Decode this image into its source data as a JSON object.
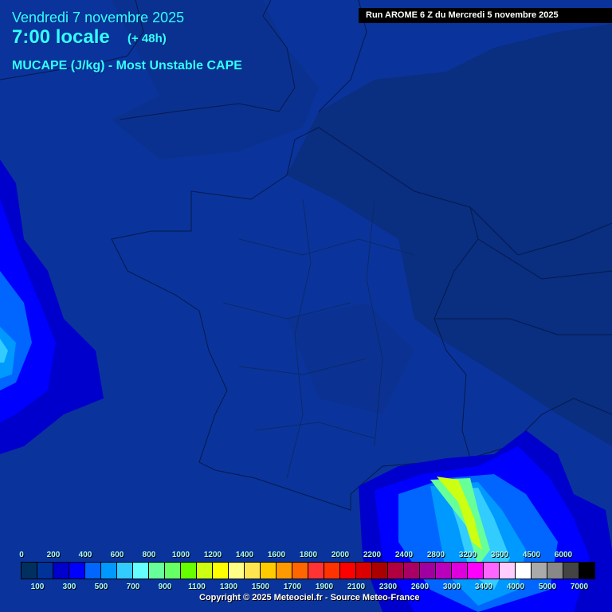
{
  "header": {
    "date": "Vendredi 7 novembre 2025",
    "hour": "7:00 locale",
    "lead": "(+ 48h)",
    "parameter": "MUCAPE (J/kg) - Most Unstable CAPE",
    "run": "Run AROME 6 Z du Mercredi 5 novembre 2025"
  },
  "legend": {
    "top_labels": [
      "0",
      "200",
      "400",
      "600",
      "800",
      "1000",
      "1200",
      "1400",
      "1600",
      "1800",
      "2000",
      "2200",
      "2400",
      "2800",
      "3200",
      "3600",
      "4500",
      "6000"
    ],
    "bottom_labels": [
      "100",
      "300",
      "500",
      "700",
      "900",
      "1100",
      "1300",
      "1500",
      "1700",
      "1900",
      "2100",
      "2300",
      "2600",
      "3000",
      "3400",
      "4000",
      "5000",
      "7000"
    ],
    "colors": [
      "#003060",
      "#003399",
      "#0000cc",
      "#0000ff",
      "#0066ff",
      "#0099ff",
      "#33ccff",
      "#66ffff",
      "#66ff99",
      "#66ff66",
      "#66ff00",
      "#ccff11",
      "#ffff00",
      "#ffff88",
      "#ffe650",
      "#ffcc00",
      "#ff9900",
      "#ff6600",
      "#ff3333",
      "#ff3300",
      "#ff0000",
      "#dd0000",
      "#aa0000",
      "#b00040",
      "#aa0066",
      "#a000a0",
      "#bb00bb",
      "#dd00dd",
      "#ff00ff",
      "#ff66ff",
      "#ffccff",
      "#ffffff",
      "#aaaaaa",
      "#888888",
      "#444444",
      "#000000"
    ]
  },
  "footer": {
    "copyright": "Copyright © 2025 Meteociel.fr - Source Meteo-France"
  }
}
